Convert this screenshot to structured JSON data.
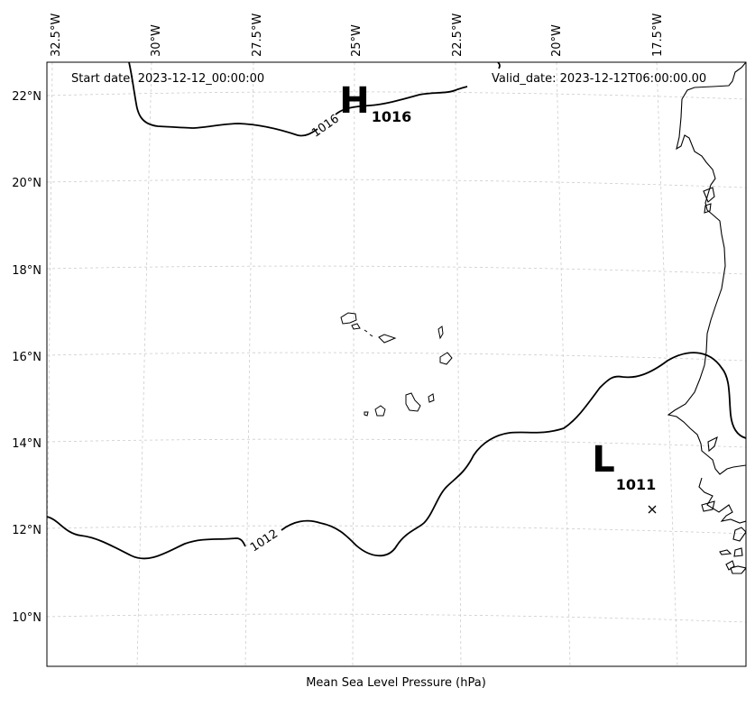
{
  "header": {
    "start_date": "Start date: 2023-12-12_00:00:00",
    "valid_date": "Valid_date: 2023-12-12T06:00:00.00"
  },
  "footer": {
    "xlabel": "Mean Sea Level Pressure (hPa)"
  },
  "lon_labels": [
    "32.5°W",
    "30°W",
    "27.5°W",
    "25°W",
    "22.5°W",
    "20°W",
    "17.5°W"
  ],
  "lat_labels": [
    "22°N",
    "20°N",
    "18°N",
    "16°N",
    "14°N",
    "12°N",
    "10°N"
  ],
  "isobars": [
    {
      "value": 1016,
      "label": "1016"
    },
    {
      "value": 1012,
      "label": "1012"
    }
  ],
  "pressure_centers": [
    {
      "type": "high",
      "symbol": "H",
      "value": "1016"
    },
    {
      "type": "low",
      "symbol": "L",
      "value": "1011"
    }
  ],
  "map": {
    "projection": "conic",
    "lon_range": [
      "33°W",
      "16.5°W"
    ],
    "lat_range": [
      "9°N",
      "22.8°N"
    ],
    "gridlines": true,
    "colors": {
      "coast": "#000000",
      "isobar": "#000000",
      "grid": "#cccccc",
      "background": "#ffffff"
    }
  }
}
